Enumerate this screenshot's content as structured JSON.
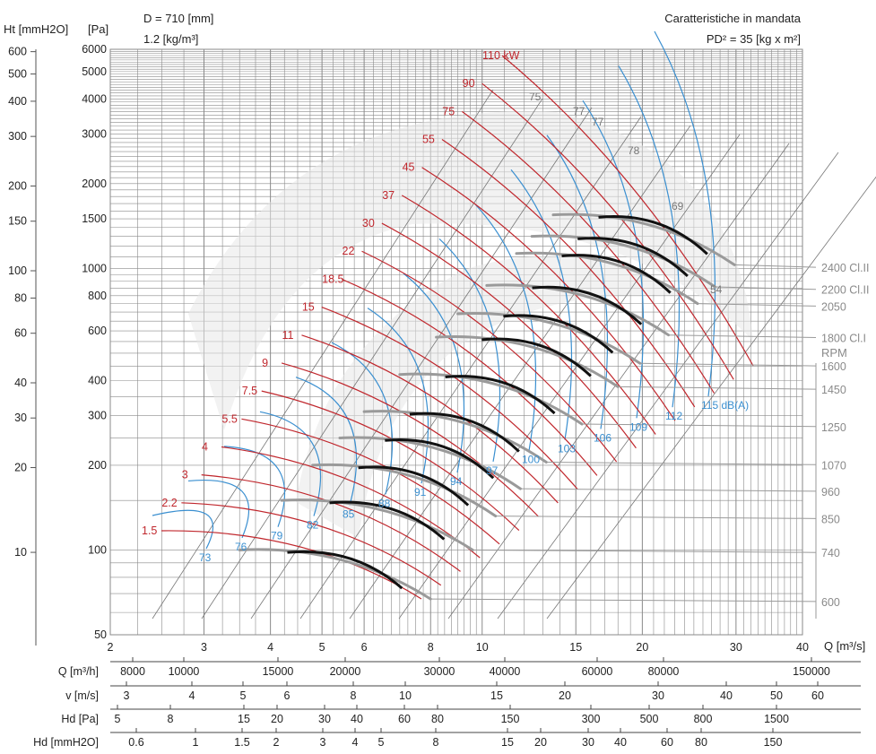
{
  "header": {
    "left_line1": "D = 710 [mm]",
    "left_line2": "1.2 [kg/m³]",
    "right_line1": "Caratteristiche in mandata",
    "right_line2": "PD² = 35 [kg x m²]"
  },
  "chart_data": {
    "type": "line",
    "log_axes": true,
    "x_axis": {
      "label": "Q [m³/s]",
      "range": [
        2,
        40
      ],
      "ticks": [
        "2",
        "3",
        "4",
        "5",
        "6",
        "8",
        "10",
        "15",
        "20",
        "30",
        "40"
      ],
      "tick_values": [
        2,
        3,
        4,
        5,
        6,
        8,
        10,
        15,
        20,
        30,
        40
      ]
    },
    "y_axis_pa": {
      "label": "[Pa]",
      "range": [
        50,
        6000
      ],
      "ticks": [
        "6000",
        "5000",
        "4000",
        "3000",
        "2000",
        "1500",
        "1000",
        "800",
        "600",
        "400",
        "300",
        "200",
        "100",
        "50"
      ],
      "tick_values": [
        6000,
        5000,
        4000,
        3000,
        2000,
        1500,
        1000,
        800,
        600,
        400,
        300,
        200,
        100,
        50
      ]
    },
    "y_axis_mmh2o": {
      "label": "Ht [mmH2O]",
      "ticks": [
        "600",
        "500",
        "400",
        "300",
        "200",
        "150",
        "100",
        "80",
        "60",
        "40",
        "30",
        "20",
        "10"
      ],
      "tick_values": [
        600,
        500,
        400,
        300,
        200,
        150,
        100,
        80,
        60,
        40,
        30,
        20,
        10
      ]
    },
    "rpm_title": "RPM",
    "rpm_curves": [
      {
        "rpm": "600",
        "label": "600",
        "q0": 3.5,
        "p0": 100,
        "q1": 8.0,
        "p1": 67
      },
      {
        "rpm": "740",
        "label": "740",
        "q0": 4.2,
        "p0": 150,
        "q1": 9.6,
        "p1": 100
      },
      {
        "rpm": "850",
        "label": "850",
        "q0": 4.8,
        "p0": 200,
        "q1": 10.6,
        "p1": 132
      },
      {
        "rpm": "960",
        "label": "960",
        "q0": 5.4,
        "p0": 250,
        "q1": 11.8,
        "p1": 165
      },
      {
        "rpm": "1070",
        "label": "1070",
        "q0": 6.0,
        "p0": 310,
        "q1": 13.2,
        "p1": 205
      },
      {
        "rpm": "1250",
        "label": "1250",
        "q0": 7.0,
        "p0": 420,
        "q1": 15.4,
        "p1": 280
      },
      {
        "rpm": "1450",
        "label": "1450",
        "q0": 8.2,
        "p0": 570,
        "q1": 18.0,
        "p1": 380
      },
      {
        "rpm": "1600",
        "label": "1600",
        "q0": 9.0,
        "p0": 690,
        "q1": 19.8,
        "p1": 460
      },
      {
        "rpm": "1800 Cl.I",
        "label": "1800 Cl.I",
        "q0": 10.2,
        "p0": 870,
        "q1": 22.4,
        "p1": 580
      },
      {
        "rpm": "2050",
        "label": "2050",
        "q0": 11.6,
        "p0": 1130,
        "q1": 25.4,
        "p1": 750
      },
      {
        "rpm": "2200 Cl.II",
        "label": "2200 Cl.II",
        "q0": 12.4,
        "p0": 1300,
        "q1": 27.4,
        "p1": 860
      },
      {
        "rpm": "2400 Cl.II",
        "label": "2400 Cl.II",
        "q0": 13.6,
        "p0": 1550,
        "q1": 29.8,
        "p1": 1030
      }
    ],
    "power_labels": [
      "1.5",
      "2.2",
      "3",
      "4",
      "5.5",
      "7.5",
      "9",
      "11",
      "15",
      "18.5",
      "22",
      "30",
      "37",
      "45",
      "55",
      "75",
      "90",
      "110 kW"
    ],
    "noise_labels": [
      "73",
      "76",
      "79",
      "82",
      "85",
      "88",
      "91",
      "94",
      "97",
      "100",
      "103",
      "106",
      "109",
      "112",
      "115 dB(A)"
    ],
    "efficiency_labels": [
      "75",
      "77",
      "77",
      "78",
      "69",
      "54"
    ],
    "scales": [
      {
        "label": "Q [m³/h]",
        "ticks": [
          {
            "v": "8000",
            "x": 148
          },
          {
            "v": "10000",
            "x": 205
          },
          {
            "v": "15000",
            "x": 310
          },
          {
            "v": "20000",
            "x": 385
          },
          {
            "v": "30000",
            "x": 490
          },
          {
            "v": "40000",
            "x": 563
          },
          {
            "v": "60000",
            "x": 666
          },
          {
            "v": "80000",
            "x": 740
          },
          {
            "v": "150000",
            "x": 905
          }
        ]
      },
      {
        "label": "v [m/s]",
        "ticks": [
          {
            "v": "3",
            "x": 141
          },
          {
            "v": "4",
            "x": 214
          },
          {
            "v": "5",
            "x": 271
          },
          {
            "v": "6",
            "x": 320
          },
          {
            "v": "8",
            "x": 394
          },
          {
            "v": "10",
            "x": 452
          },
          {
            "v": "15",
            "x": 554
          },
          {
            "v": "20",
            "x": 630
          },
          {
            "v": "30",
            "x": 734
          },
          {
            "v": "40",
            "x": 810
          },
          {
            "v": "50",
            "x": 866
          },
          {
            "v": "60",
            "x": 912
          }
        ]
      },
      {
        "label": "Hd [Pa]",
        "ticks": [
          {
            "v": "5",
            "x": 131
          },
          {
            "v": "8",
            "x": 190
          },
          {
            "v": "15",
            "x": 272
          },
          {
            "v": "20",
            "x": 309
          },
          {
            "v": "30",
            "x": 362
          },
          {
            "v": "40",
            "x": 398
          },
          {
            "v": "60",
            "x": 451
          },
          {
            "v": "80",
            "x": 488
          },
          {
            "v": "150",
            "x": 569
          },
          {
            "v": "300",
            "x": 659
          },
          {
            "v": "500",
            "x": 724
          },
          {
            "v": "800",
            "x": 784
          },
          {
            "v": "1500",
            "x": 866
          }
        ]
      },
      {
        "label": "Hd [mmH2O]",
        "ticks": [
          {
            "v": "0.6",
            "x": 152
          },
          {
            "v": "1",
            "x": 218
          },
          {
            "v": "1.5",
            "x": 270
          },
          {
            "v": "2",
            "x": 308
          },
          {
            "v": "3",
            "x": 360
          },
          {
            "v": "4",
            "x": 396
          },
          {
            "v": "5",
            "x": 425
          },
          {
            "v": "8",
            "x": 486
          },
          {
            "v": "15",
            "x": 566
          },
          {
            "v": "20",
            "x": 603
          },
          {
            "v": "30",
            "x": 656
          },
          {
            "v": "40",
            "x": 692
          },
          {
            "v": "60",
            "x": 744
          },
          {
            "v": "80",
            "x": 782
          },
          {
            "v": "150",
            "x": 862
          }
        ]
      }
    ],
    "colors": {
      "power": "#c0272d",
      "noise": "#3a8fd0",
      "grid": "#8a8a8a",
      "rpm_curve": "#111111",
      "rpm_dim": "#9a9a9a",
      "gray_line": "#777777"
    }
  }
}
